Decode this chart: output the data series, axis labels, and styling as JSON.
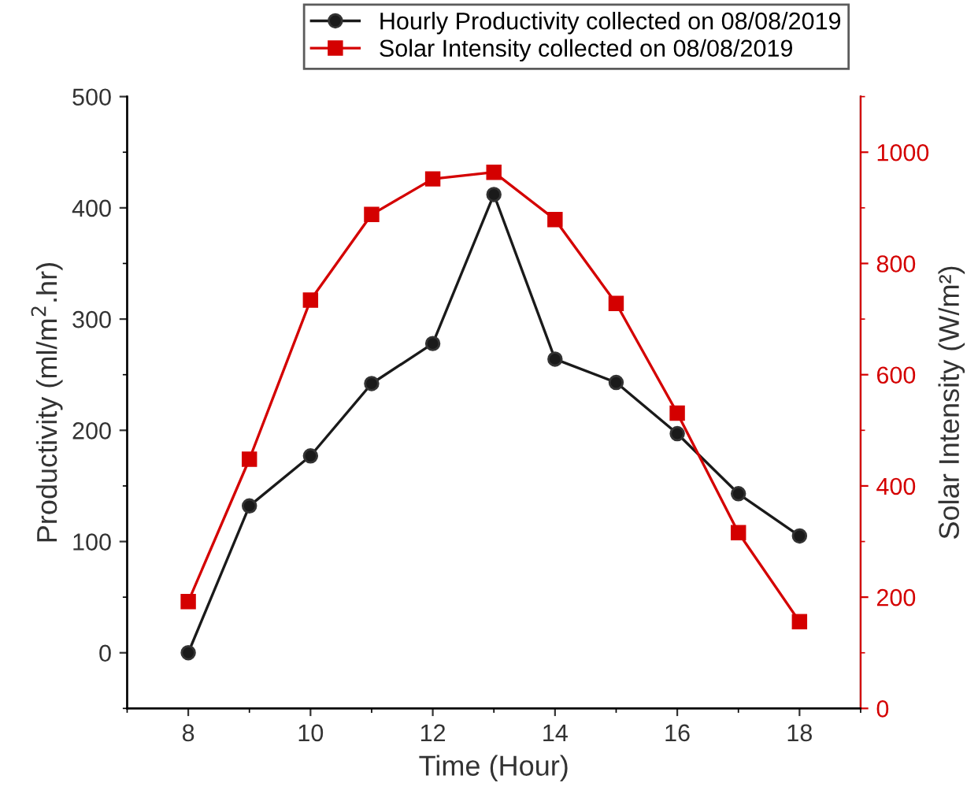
{
  "chart_data": {
    "type": "line",
    "xlabel": "Time (Hour)",
    "ylabel": "Productivity (ml/m$^{2}$.hr)",
    "y2label": "Solar Intensity (W/m²)",
    "x": [
      8,
      9,
      10,
      11,
      12,
      13,
      14,
      15,
      16,
      17,
      18
    ],
    "series": [
      {
        "name": "Hourly Productivity collected on 08/08/2019",
        "color": "#1a1a1a",
        "marker": "circle",
        "values": [
          0,
          132,
          177,
          242,
          278,
          412,
          264,
          243,
          197,
          143,
          105
        ]
      },
      {
        "name": "Solar Intensity collected on 08/08/2019",
        "color": "#d40000",
        "marker": "square",
        "axis": "y2",
        "values": [
          192,
          448,
          734,
          888,
          952,
          964,
          879,
          728,
          531,
          316,
          156
        ]
      }
    ],
    "xlim": [
      7,
      19
    ],
    "xticks": [
      8,
      10,
      12,
      14,
      16,
      18
    ],
    "ylim": [
      -50,
      500
    ],
    "yticks": [
      0,
      100,
      200,
      300,
      400,
      500
    ],
    "y2lim": [
      0,
      1100
    ],
    "y2ticks": [
      0,
      200,
      400,
      600,
      800,
      1000
    ],
    "legend": "top right",
    "grid": false
  }
}
